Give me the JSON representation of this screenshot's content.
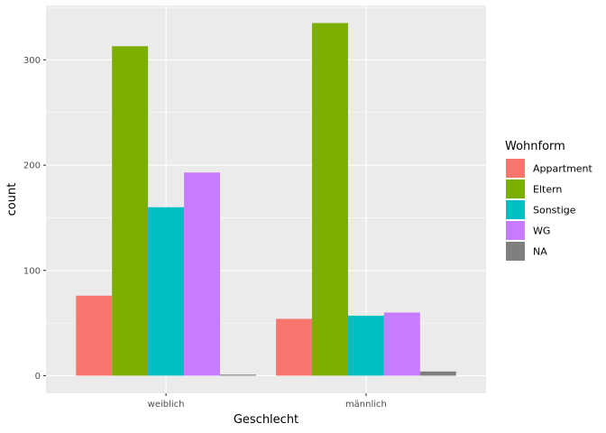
{
  "chart_data": {
    "type": "bar",
    "categories": [
      "weiblich",
      "männlich"
    ],
    "series": [
      {
        "name": "Appartment",
        "color": "#F8766D",
        "values": [
          76,
          54
        ]
      },
      {
        "name": "Eltern",
        "color": "#7CAE00",
        "values": [
          313,
          335
        ]
      },
      {
        "name": "Sonstige",
        "color": "#00BFC4",
        "values": [
          160,
          57
        ]
      },
      {
        "name": "WG",
        "color": "#C77CFF",
        "values": [
          193,
          60
        ]
      },
      {
        "name": "NA",
        "color": "#7F7F7F",
        "values": [
          1,
          4
        ]
      }
    ],
    "xlabel": "Geschlecht",
    "ylabel": "count",
    "ylim": [
      -16.75,
      351.75
    ],
    "yticks": [
      0,
      100,
      200,
      300
    ],
    "legend_title": "Wohnform",
    "legend_position": "right",
    "grid": true,
    "panel_background": "#EBEBEB",
    "grid_color": "#FFFFFF"
  }
}
